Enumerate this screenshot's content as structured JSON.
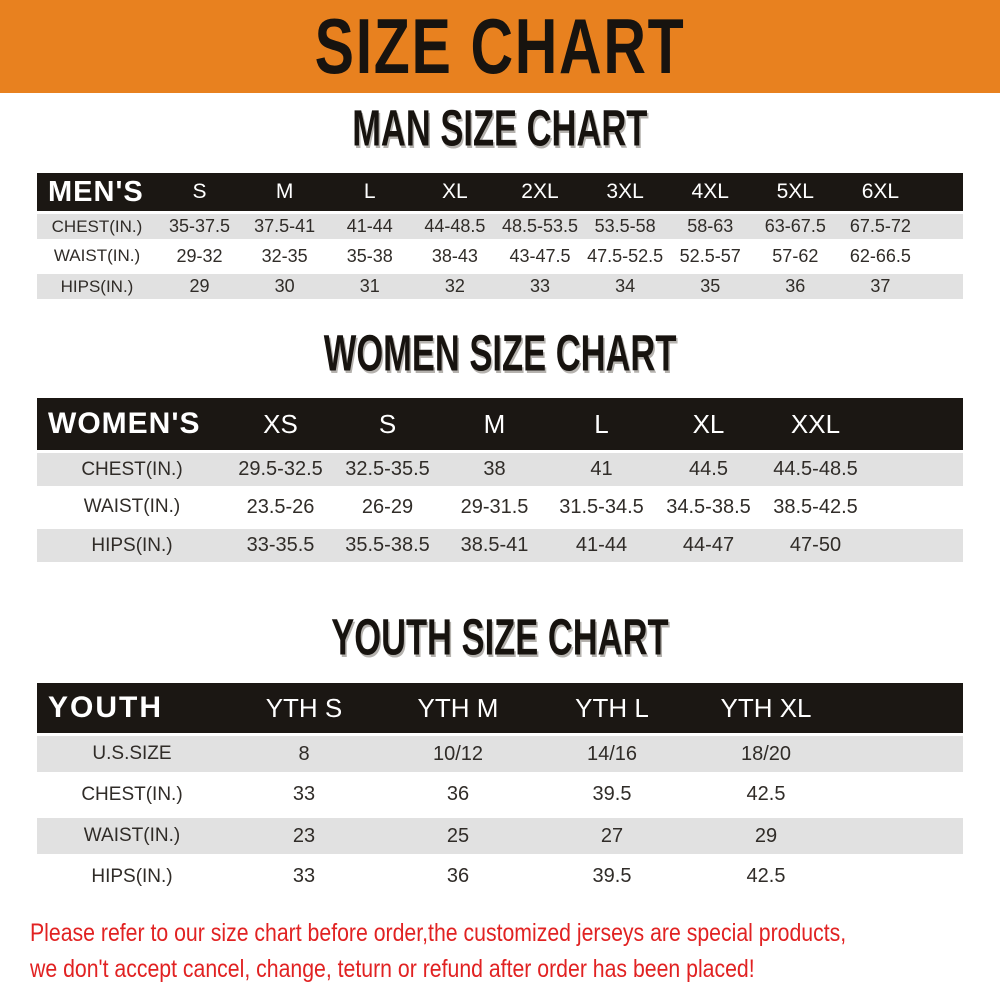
{
  "banner": {
    "title": "SIZE CHART"
  },
  "sections": {
    "men": {
      "heading": "MAN SIZE CHART",
      "header": [
        "MEN'S",
        "S",
        "M",
        "L",
        "XL",
        "2XL",
        "3XL",
        "4XL",
        "5XL",
        "6XL"
      ],
      "rows": [
        {
          "label": "CHEST(IN.)",
          "values": [
            "35-37.5",
            "37.5-41",
            "41-44",
            "44-48.5",
            "48.5-53.5",
            "53.5-58",
            "58-63",
            "63-67.5",
            "67.5-72"
          ]
        },
        {
          "label": "WAIST(IN.)",
          "values": [
            "29-32",
            "32-35",
            "35-38",
            "38-43",
            "43-47.5",
            "47.5-52.5",
            "52.5-57",
            "57-62",
            "62-66.5"
          ]
        },
        {
          "label": "HIPS(IN.)",
          "values": [
            "29",
            "30",
            "31",
            "32",
            "33",
            "34",
            "35",
            "36",
            "37"
          ]
        }
      ]
    },
    "women": {
      "heading": "WOMEN SIZE CHART",
      "header": [
        "WOMEN'S",
        "XS",
        "S",
        "M",
        "L",
        "XL",
        "XXL"
      ],
      "rows": [
        {
          "label": "CHEST(IN.)",
          "values": [
            "29.5-32.5",
            "32.5-35.5",
            "38",
            "41",
            "44.5",
            "44.5-48.5"
          ]
        },
        {
          "label": "WAIST(IN.)",
          "values": [
            "23.5-26",
            "26-29",
            "29-31.5",
            "31.5-34.5",
            "34.5-38.5",
            "38.5-42.5"
          ]
        },
        {
          "label": "HIPS(IN.)",
          "values": [
            "33-35.5",
            "35.5-38.5",
            "38.5-41",
            "41-44",
            "44-47",
            "47-50"
          ]
        }
      ]
    },
    "youth": {
      "heading": "YOUTH SIZE CHART",
      "header": [
        "YOUTH",
        "YTH S",
        "YTH M",
        "YTH L",
        "YTH XL"
      ],
      "rows": [
        {
          "label": "U.S.SIZE",
          "values": [
            "8",
            "10/12",
            "14/16",
            "18/20"
          ]
        },
        {
          "label": "CHEST(IN.)",
          "values": [
            "33",
            "36",
            "39.5",
            "42.5"
          ]
        },
        {
          "label": "WAIST(IN.)",
          "values": [
            "23",
            "25",
            "27",
            "29"
          ]
        },
        {
          "label": "HIPS(IN.)",
          "values": [
            "33",
            "36",
            "39.5",
            "42.5"
          ]
        }
      ]
    }
  },
  "footer": {
    "line1": "Please refer to our size chart before order,the customized jerseys are special products,",
    "line2": "we don't accept cancel, change, teturn or refund after order has been placed!"
  },
  "colors": {
    "banner_orange": "#e8811f",
    "header_black": "#1b1713",
    "row_gray": "#e1e1e1",
    "note_red": "#e12222",
    "title_black": "#17130f"
  }
}
